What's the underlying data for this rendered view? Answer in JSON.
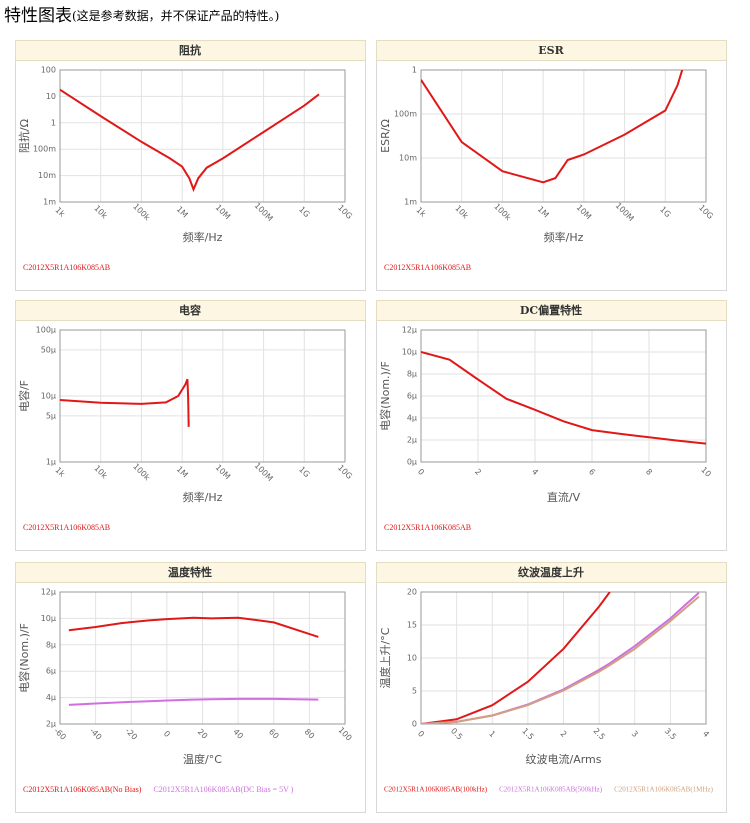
{
  "header": {
    "title": "特性图表",
    "note": "(这是参考数据，并不保证产品的特性。)"
  },
  "chart_data": [
    {
      "type": "line",
      "title": "阻抗",
      "xlabel": "频率/Hz",
      "ylabel": "阻抗/Ω",
      "xlog": true,
      "ylog": true,
      "grid": true,
      "x": [
        1000,
        10000,
        100000,
        500000,
        1000000,
        1500000,
        1900000,
        2500000,
        4000000,
        10000000,
        100000000,
        1000000000,
        2300000000
      ],
      "series": [
        {
          "name": "C2012X5R1A106K085AB",
          "color": "#e01818",
          "values": [
            18,
            1.8,
            0.19,
            0.045,
            0.022,
            0.008,
            0.003,
            0.008,
            0.02,
            0.045,
            0.45,
            4.5,
            12
          ]
        }
      ],
      "xlim": [
        1000,
        10000000000
      ],
      "ylim": [
        0.001,
        100
      ],
      "xticks": [
        {
          "value": 1000,
          "label": "1k"
        },
        {
          "value": 10000,
          "label": "10k"
        },
        {
          "value": 100000,
          "label": "100k"
        },
        {
          "value": 1000000,
          "label": "1M"
        },
        {
          "value": 10000000,
          "label": "10M"
        },
        {
          "value": 100000000,
          "label": "100M"
        },
        {
          "value": 1000000000,
          "label": "1G"
        },
        {
          "value": 10000000000,
          "label": "10G"
        }
      ],
      "yticks": [
        {
          "value": 0.001,
          "label": "1m"
        },
        {
          "value": 0.01,
          "label": "10m"
        },
        {
          "value": 0.1,
          "label": "100m"
        },
        1,
        10,
        100
      ]
    },
    {
      "type": "line",
      "title": "ESR",
      "xlabel": "频率/Hz",
      "ylabel": "ESR/Ω",
      "xlog": true,
      "ylog": true,
      "grid": true,
      "x": [
        1000,
        10000,
        100000,
        1000000,
        2000000,
        4000000,
        10000000,
        100000000,
        1000000000,
        2000000000,
        2600000000
      ],
      "series": [
        {
          "name": "C2012X5R1A106K085AB",
          "color": "#e01818",
          "values": [
            0.6,
            0.023,
            0.005,
            0.0028,
            0.0035,
            0.009,
            0.012,
            0.034,
            0.12,
            0.45,
            1
          ]
        }
      ],
      "xlim": [
        1000,
        10000000000
      ],
      "ylim": [
        0.001,
        1
      ],
      "xticks": [
        {
          "value": 1000,
          "label": "1k"
        },
        {
          "value": 10000,
          "label": "10k"
        },
        {
          "value": 100000,
          "label": "100k"
        },
        {
          "value": 1000000,
          "label": "1M"
        },
        {
          "value": 10000000,
          "label": "10M"
        },
        {
          "value": 100000000,
          "label": "100M"
        },
        {
          "value": 1000000000,
          "label": "1G"
        },
        {
          "value": 10000000000,
          "label": "10G"
        }
      ],
      "yticks": [
        {
          "value": 0.001,
          "label": "1m"
        },
        {
          "value": 0.01,
          "label": "10m"
        },
        {
          "value": 0.1,
          "label": "100m"
        },
        1
      ]
    },
    {
      "type": "line",
      "title": "电容",
      "xlabel": "频率/Hz",
      "ylabel": "电容/F",
      "xlog": true,
      "ylog": true,
      "grid": true,
      "x": [
        1000,
        10000,
        100000,
        400000,
        800000,
        1200000,
        1350000,
        1400000,
        1450000
      ],
      "series": [
        {
          "name": "C2012X5R1A106K085AB",
          "color": "#e01818",
          "values": [
            8.7e-06,
            7.9e-06,
            7.6e-06,
            8e-06,
            1e-05,
            1.5e-05,
            1.8e-05,
            1e-05,
            3.4e-06
          ]
        }
      ],
      "xlim": [
        1000,
        10000000000
      ],
      "ylim": [
        1e-06,
        0.0001
      ],
      "xticks": [
        {
          "value": 1000,
          "label": "1k"
        },
        {
          "value": 10000,
          "label": "10k"
        },
        {
          "value": 100000,
          "label": "100k"
        },
        {
          "value": 1000000,
          "label": "1M"
        },
        {
          "value": 10000000,
          "label": "10M"
        },
        {
          "value": 100000000,
          "label": "100M"
        },
        {
          "value": 1000000000,
          "label": "1G"
        },
        {
          "value": 10000000000,
          "label": "10G"
        }
      ],
      "yticks": [
        {
          "value": 1e-06,
          "label": "1µ"
        },
        {
          "value": 5e-06,
          "label": "5µ"
        },
        {
          "value": 1e-05,
          "label": "10µ"
        },
        {
          "value": 5e-05,
          "label": "50µ"
        },
        {
          "value": 0.0001,
          "label": "100µ"
        }
      ]
    },
    {
      "type": "line",
      "title": "DC偏置特性",
      "xlabel": "直流/V",
      "ylabel": "电容(Nom.)/F",
      "xlog": false,
      "ylog": false,
      "grid": true,
      "x": [
        0,
        1,
        2,
        3,
        4,
        5,
        6,
        7,
        8,
        9,
        10
      ],
      "series": [
        {
          "name": "C2012X5R1A106K085AB",
          "color": "#e01818",
          "values": [
            1e-05,
            9.3e-06,
            7.5e-06,
            5.75e-06,
            4.75e-06,
            3.7e-06,
            2.9e-06,
            2.55e-06,
            2.25e-06,
            1.95e-06,
            1.67e-06
          ]
        }
      ],
      "xlim": [
        0,
        10
      ],
      "ylim": [
        0,
        1.2e-05
      ],
      "xticks": [
        0,
        2,
        4,
        6,
        8,
        10
      ],
      "yticks": [
        {
          "value": 0,
          "label": "0µ"
        },
        {
          "value": 2e-06,
          "label": "2µ"
        },
        {
          "value": 4e-06,
          "label": "4µ"
        },
        {
          "value": 6e-06,
          "label": "6µ"
        },
        {
          "value": 8e-06,
          "label": "8µ"
        },
        {
          "value": 1e-05,
          "label": "10µ"
        },
        {
          "value": 1.2e-05,
          "label": "12µ"
        }
      ]
    },
    {
      "type": "line",
      "title": "温度特性",
      "xlabel": "温度/°C",
      "ylabel": "电容(Nom.)/F",
      "xlog": false,
      "ylog": false,
      "grid": true,
      "x": [
        -55,
        -40,
        -25,
        -10,
        0,
        15,
        25,
        40,
        60,
        85
      ],
      "series": [
        {
          "name": "C2012X5R1A106K085AB(No Bias)",
          "color": "#e01818",
          "values": [
            9.1e-06,
            9.35e-06,
            9.65e-06,
            9.85e-06,
            9.95e-06,
            1.005e-05,
            1e-05,
            1.005e-05,
            9.7e-06,
            8.6e-06
          ]
        },
        {
          "name": "C2012X5R1A106K085AB(DC Bias = 5V )",
          "color": "#d070e0",
          "values": [
            3.45e-06,
            3.55e-06,
            3.65e-06,
            3.72e-06,
            3.78e-06,
            3.85e-06,
            3.88e-06,
            3.9e-06,
            3.9e-06,
            3.85e-06
          ]
        }
      ],
      "xlim": [
        -60,
        100
      ],
      "ylim": [
        2e-06,
        1.2e-05
      ],
      "xticks": [
        -60,
        -40,
        -20,
        0,
        20,
        40,
        60,
        80,
        100
      ],
      "yticks": [
        {
          "value": 2e-06,
          "label": "2µ"
        },
        {
          "value": 4e-06,
          "label": "4µ"
        },
        {
          "value": 6e-06,
          "label": "6µ"
        },
        {
          "value": 8e-06,
          "label": "8µ"
        },
        {
          "value": 1e-05,
          "label": "10µ"
        },
        {
          "value": 1.2e-05,
          "label": "12µ"
        }
      ]
    },
    {
      "type": "line",
      "title": "纹波温度上升",
      "xlabel": "纹波电流/Arms",
      "ylabel": "温度上升/°C",
      "xlog": false,
      "ylog": false,
      "grid": true,
      "x": [
        0,
        0.5,
        1,
        1.5,
        2,
        2.5,
        2.65,
        3,
        3.5,
        3.9
      ],
      "series": [
        {
          "name": "C2012X5R1A106K085AB(100kHz)",
          "color": "#e01818",
          "values": [
            0,
            0.71,
            2.85,
            6.41,
            11.4,
            17.8,
            20,
            null,
            null,
            null
          ]
        },
        {
          "name": "C2012X5R1A106K085AB(500kHz)",
          "color": "#d070e0",
          "values": [
            0,
            0.33,
            1.31,
            2.95,
            5.24,
            8.19,
            9.2,
            11.8,
            16,
            19.9
          ]
        },
        {
          "name": "C2012X5R1A106K085AB(1MHz)",
          "color": "#d0a080",
          "values": [
            0,
            0.32,
            1.27,
            2.86,
            5.08,
            7.94,
            8.92,
            11.4,
            15.6,
            19.3
          ]
        }
      ],
      "xlim": [
        0,
        4
      ],
      "ylim": [
        0,
        20
      ],
      "xticks": [
        0,
        0.5,
        1,
        1.5,
        2,
        2.5,
        3,
        3.5,
        4
      ],
      "yticks": [
        0,
        5,
        10,
        15,
        20
      ]
    }
  ]
}
